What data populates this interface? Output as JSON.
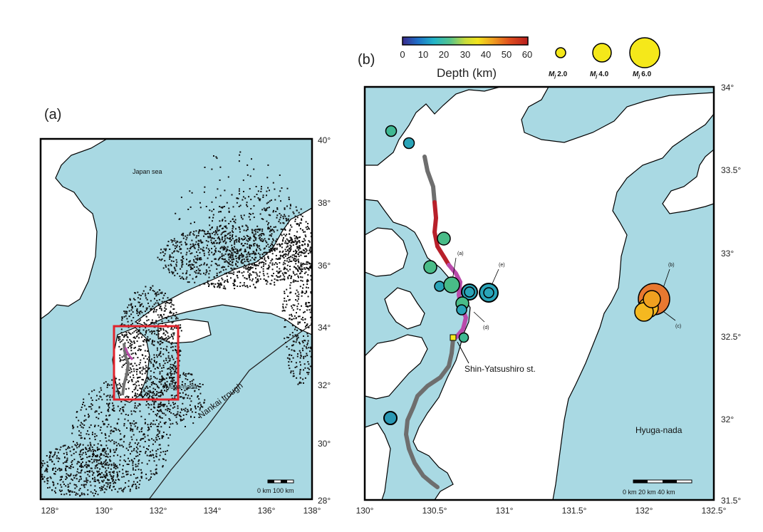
{
  "panel_a": {
    "label": "(a)",
    "x_ticks": [
      "128°",
      "130°",
      "132°",
      "134°",
      "136°",
      "138°"
    ],
    "y_ticks": [
      "28°",
      "30°",
      "32°",
      "34°",
      "36°",
      "38°",
      "40°"
    ],
    "place_labels": {
      "japan_sea": "Japan sea",
      "hyuga_nada": "Hyuga-nada",
      "nankai": "Nankai trough"
    },
    "scale_label": "0 km 100 km"
  },
  "panel_b": {
    "label": "(b)",
    "x_ticks": [
      "130°",
      "130.5°",
      "131°",
      "131.5°",
      "132°",
      "132.5°"
    ],
    "y_ticks": [
      "31.5°",
      "32°",
      "32.5°",
      "33°",
      "33.5°",
      "34°"
    ],
    "place_labels": {
      "hyuga_nada": "Hyuga-nada",
      "station": "Shin-Yatsushiro st."
    },
    "event_labels": [
      "(a)",
      "(b)",
      "(c)",
      "(d)",
      "(e)"
    ],
    "scale_label": "0 km   20 km   40 km"
  },
  "colorbar": {
    "title": "Depth (km)",
    "ticks": [
      "0",
      "10",
      "20",
      "30",
      "40",
      "50",
      "60"
    ],
    "colors": [
      "#3a2a8c",
      "#1f6ec7",
      "#22b4c8",
      "#56c48c",
      "#c8dc3c",
      "#f2e41e",
      "#f0a020",
      "#e0501e",
      "#b81e1e"
    ]
  },
  "magnitude_legend": [
    {
      "prefix": "M",
      "sub": "j",
      "value": "2.0"
    },
    {
      "prefix": "M",
      "sub": "j",
      "value": "4.0"
    },
    {
      "prefix": "M",
      "sub": "j",
      "value": "6.0"
    }
  ]
}
